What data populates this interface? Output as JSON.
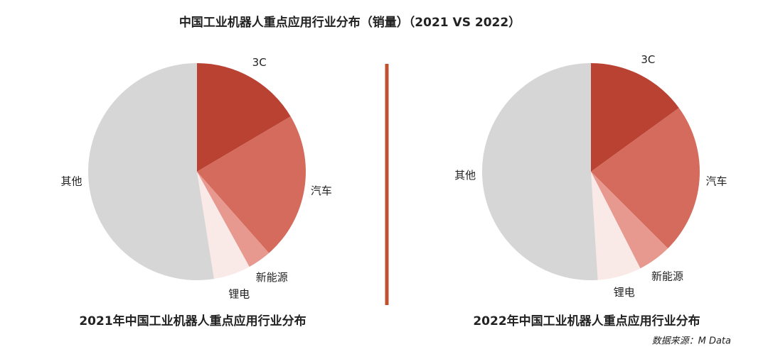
{
  "title": "中国工业机器人重点应用行业分布（销量）（2021 VS 2022）",
  "source": "数据来源：M Data",
  "chart_data": [
    {
      "type": "pie",
      "title": "2021年中国工业机器人重点应用行业分布",
      "categories": [
        "3C",
        "汽车",
        "新能源",
        "锂电",
        "其他"
      ],
      "values": [
        16.5,
        22,
        3.5,
        5.5,
        52.5
      ],
      "colors": [
        "#b94233",
        "#d56b5c",
        "#e8998f",
        "#f9e9e7",
        "#d6d6d6"
      ]
    },
    {
      "type": "pie",
      "title": "2022年中国工业机器人重点应用行业分布",
      "categories": [
        "3C",
        "汽车",
        "新能源",
        "锂电",
        "其他"
      ],
      "values": [
        15,
        22.5,
        5,
        6.5,
        51
      ],
      "colors": [
        "#b94233",
        "#d56b5c",
        "#e8998f",
        "#f9e9e7",
        "#d6d6d6"
      ]
    }
  ]
}
